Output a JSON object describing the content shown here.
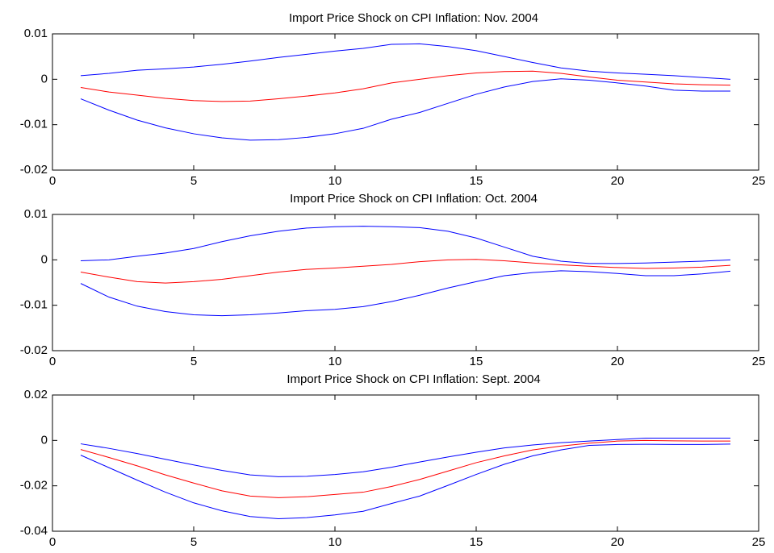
{
  "chart_data": [
    {
      "type": "line",
      "title": "Import Price Shock on CPI Inflation: Nov. 2004",
      "x": [
        1,
        2,
        3,
        4,
        5,
        6,
        7,
        8,
        9,
        10,
        11,
        12,
        13,
        14,
        15,
        16,
        17,
        18,
        19,
        20,
        21,
        22,
        23,
        24
      ],
      "xlim": [
        0,
        25
      ],
      "xticks": [
        0,
        5,
        10,
        15,
        20,
        25
      ],
      "ylim": [
        -0.02,
        0.01
      ],
      "yticks": [
        -0.02,
        -0.01,
        0,
        0.01
      ],
      "series": [
        {
          "color": "#0000ff",
          "values": [
            0.0008,
            0.0013,
            0.002,
            0.0023,
            0.0027,
            0.0033,
            0.004,
            0.0048,
            0.0055,
            0.0062,
            0.0068,
            0.0077,
            0.0078,
            0.0072,
            0.0063,
            0.005,
            0.0037,
            0.0025,
            0.0018,
            0.0014,
            0.0011,
            0.0008,
            0.0004,
            0.0
          ]
        },
        {
          "color": "#ff0000",
          "values": [
            -0.0018,
            -0.0028,
            -0.0035,
            -0.0042,
            -0.0047,
            -0.0049,
            -0.0048,
            -0.0043,
            -0.0037,
            -0.003,
            -0.0021,
            -0.0008,
            0.0,
            0.0008,
            0.0014,
            0.0017,
            0.0018,
            0.0013,
            0.0005,
            -0.0002,
            -0.0006,
            -0.001,
            -0.0012,
            -0.0013
          ]
        },
        {
          "color": "#0000ff",
          "values": [
            -0.0043,
            -0.0068,
            -0.009,
            -0.0107,
            -0.012,
            -0.0129,
            -0.0134,
            -0.0133,
            -0.0128,
            -0.012,
            -0.0108,
            -0.0088,
            -0.0073,
            -0.0053,
            -0.0033,
            -0.0017,
            -0.0005,
            0.0001,
            -0.0002,
            -0.0008,
            -0.0015,
            -0.0024,
            -0.0026,
            -0.0026
          ]
        }
      ]
    },
    {
      "type": "line",
      "title": "Import Price Shock on CPI Inflation: Oct. 2004",
      "x": [
        1,
        2,
        3,
        4,
        5,
        6,
        7,
        8,
        9,
        10,
        11,
        12,
        13,
        14,
        15,
        16,
        17,
        18,
        19,
        20,
        21,
        22,
        23,
        24
      ],
      "xlim": [
        0,
        25
      ],
      "xticks": [
        0,
        5,
        10,
        15,
        20,
        25
      ],
      "ylim": [
        -0.02,
        0.01
      ],
      "yticks": [
        -0.02,
        -0.01,
        0,
        0.01
      ],
      "series": [
        {
          "color": "#0000ff",
          "values": [
            -0.0002,
            0.0,
            0.0008,
            0.0015,
            0.0025,
            0.004,
            0.0053,
            0.0063,
            0.007,
            0.0073,
            0.0074,
            0.0073,
            0.0071,
            0.0063,
            0.0048,
            0.0028,
            0.0008,
            -0.0003,
            -0.0008,
            -0.0008,
            -0.0007,
            -0.0005,
            -0.0003,
            0.0
          ]
        },
        {
          "color": "#ff0000",
          "values": [
            -0.0027,
            -0.0038,
            -0.0048,
            -0.0051,
            -0.0048,
            -0.0043,
            -0.0035,
            -0.0027,
            -0.0021,
            -0.0018,
            -0.0014,
            -0.001,
            -0.0004,
            0.0,
            0.0001,
            -0.0002,
            -0.0007,
            -0.0011,
            -0.0014,
            -0.0017,
            -0.0019,
            -0.0018,
            -0.0016,
            -0.0012
          ]
        },
        {
          "color": "#0000ff",
          "values": [
            -0.0052,
            -0.0082,
            -0.0102,
            -0.0114,
            -0.0121,
            -0.0123,
            -0.0121,
            -0.0117,
            -0.0112,
            -0.0109,
            -0.0103,
            -0.0092,
            -0.0078,
            -0.0062,
            -0.0048,
            -0.0035,
            -0.0028,
            -0.0024,
            -0.0026,
            -0.003,
            -0.0035,
            -0.0035,
            -0.0031,
            -0.0025
          ]
        }
      ]
    },
    {
      "type": "line",
      "title": "Import Price Shock on CPI Inflation: Sept. 2004",
      "x": [
        1,
        2,
        3,
        4,
        5,
        6,
        7,
        8,
        9,
        10,
        11,
        12,
        13,
        14,
        15,
        16,
        17,
        18,
        19,
        20,
        21,
        22,
        23,
        24
      ],
      "xlim": [
        0,
        25
      ],
      "xticks": [
        0,
        5,
        10,
        15,
        20,
        25
      ],
      "ylim": [
        -0.04,
        0.02
      ],
      "yticks": [
        -0.04,
        -0.02,
        0,
        0.02
      ],
      "series": [
        {
          "color": "#0000ff",
          "values": [
            -0.0015,
            -0.0035,
            -0.0058,
            -0.0083,
            -0.0108,
            -0.0132,
            -0.0152,
            -0.016,
            -0.0158,
            -0.015,
            -0.0138,
            -0.0118,
            -0.0095,
            -0.0073,
            -0.0052,
            -0.0033,
            -0.002,
            -0.001,
            -0.0003,
            0.0004,
            0.001,
            0.001,
            0.001,
            0.001
          ]
        },
        {
          "color": "#ff0000",
          "values": [
            -0.004,
            -0.0075,
            -0.0112,
            -0.0152,
            -0.0188,
            -0.0222,
            -0.0245,
            -0.0252,
            -0.0248,
            -0.0238,
            -0.0228,
            -0.0203,
            -0.0172,
            -0.0135,
            -0.0098,
            -0.0068,
            -0.0042,
            -0.0025,
            -0.0012,
            -0.0003,
            0.0,
            -0.0002,
            -0.0003,
            -0.0003
          ]
        },
        {
          "color": "#0000ff",
          "values": [
            -0.0065,
            -0.012,
            -0.0175,
            -0.0228,
            -0.0275,
            -0.031,
            -0.0335,
            -0.0345,
            -0.034,
            -0.0328,
            -0.0312,
            -0.0278,
            -0.0245,
            -0.0198,
            -0.015,
            -0.0105,
            -0.0068,
            -0.0042,
            -0.0022,
            -0.0018,
            -0.0017,
            -0.0018,
            -0.0018,
            -0.0016
          ]
        }
      ]
    }
  ]
}
